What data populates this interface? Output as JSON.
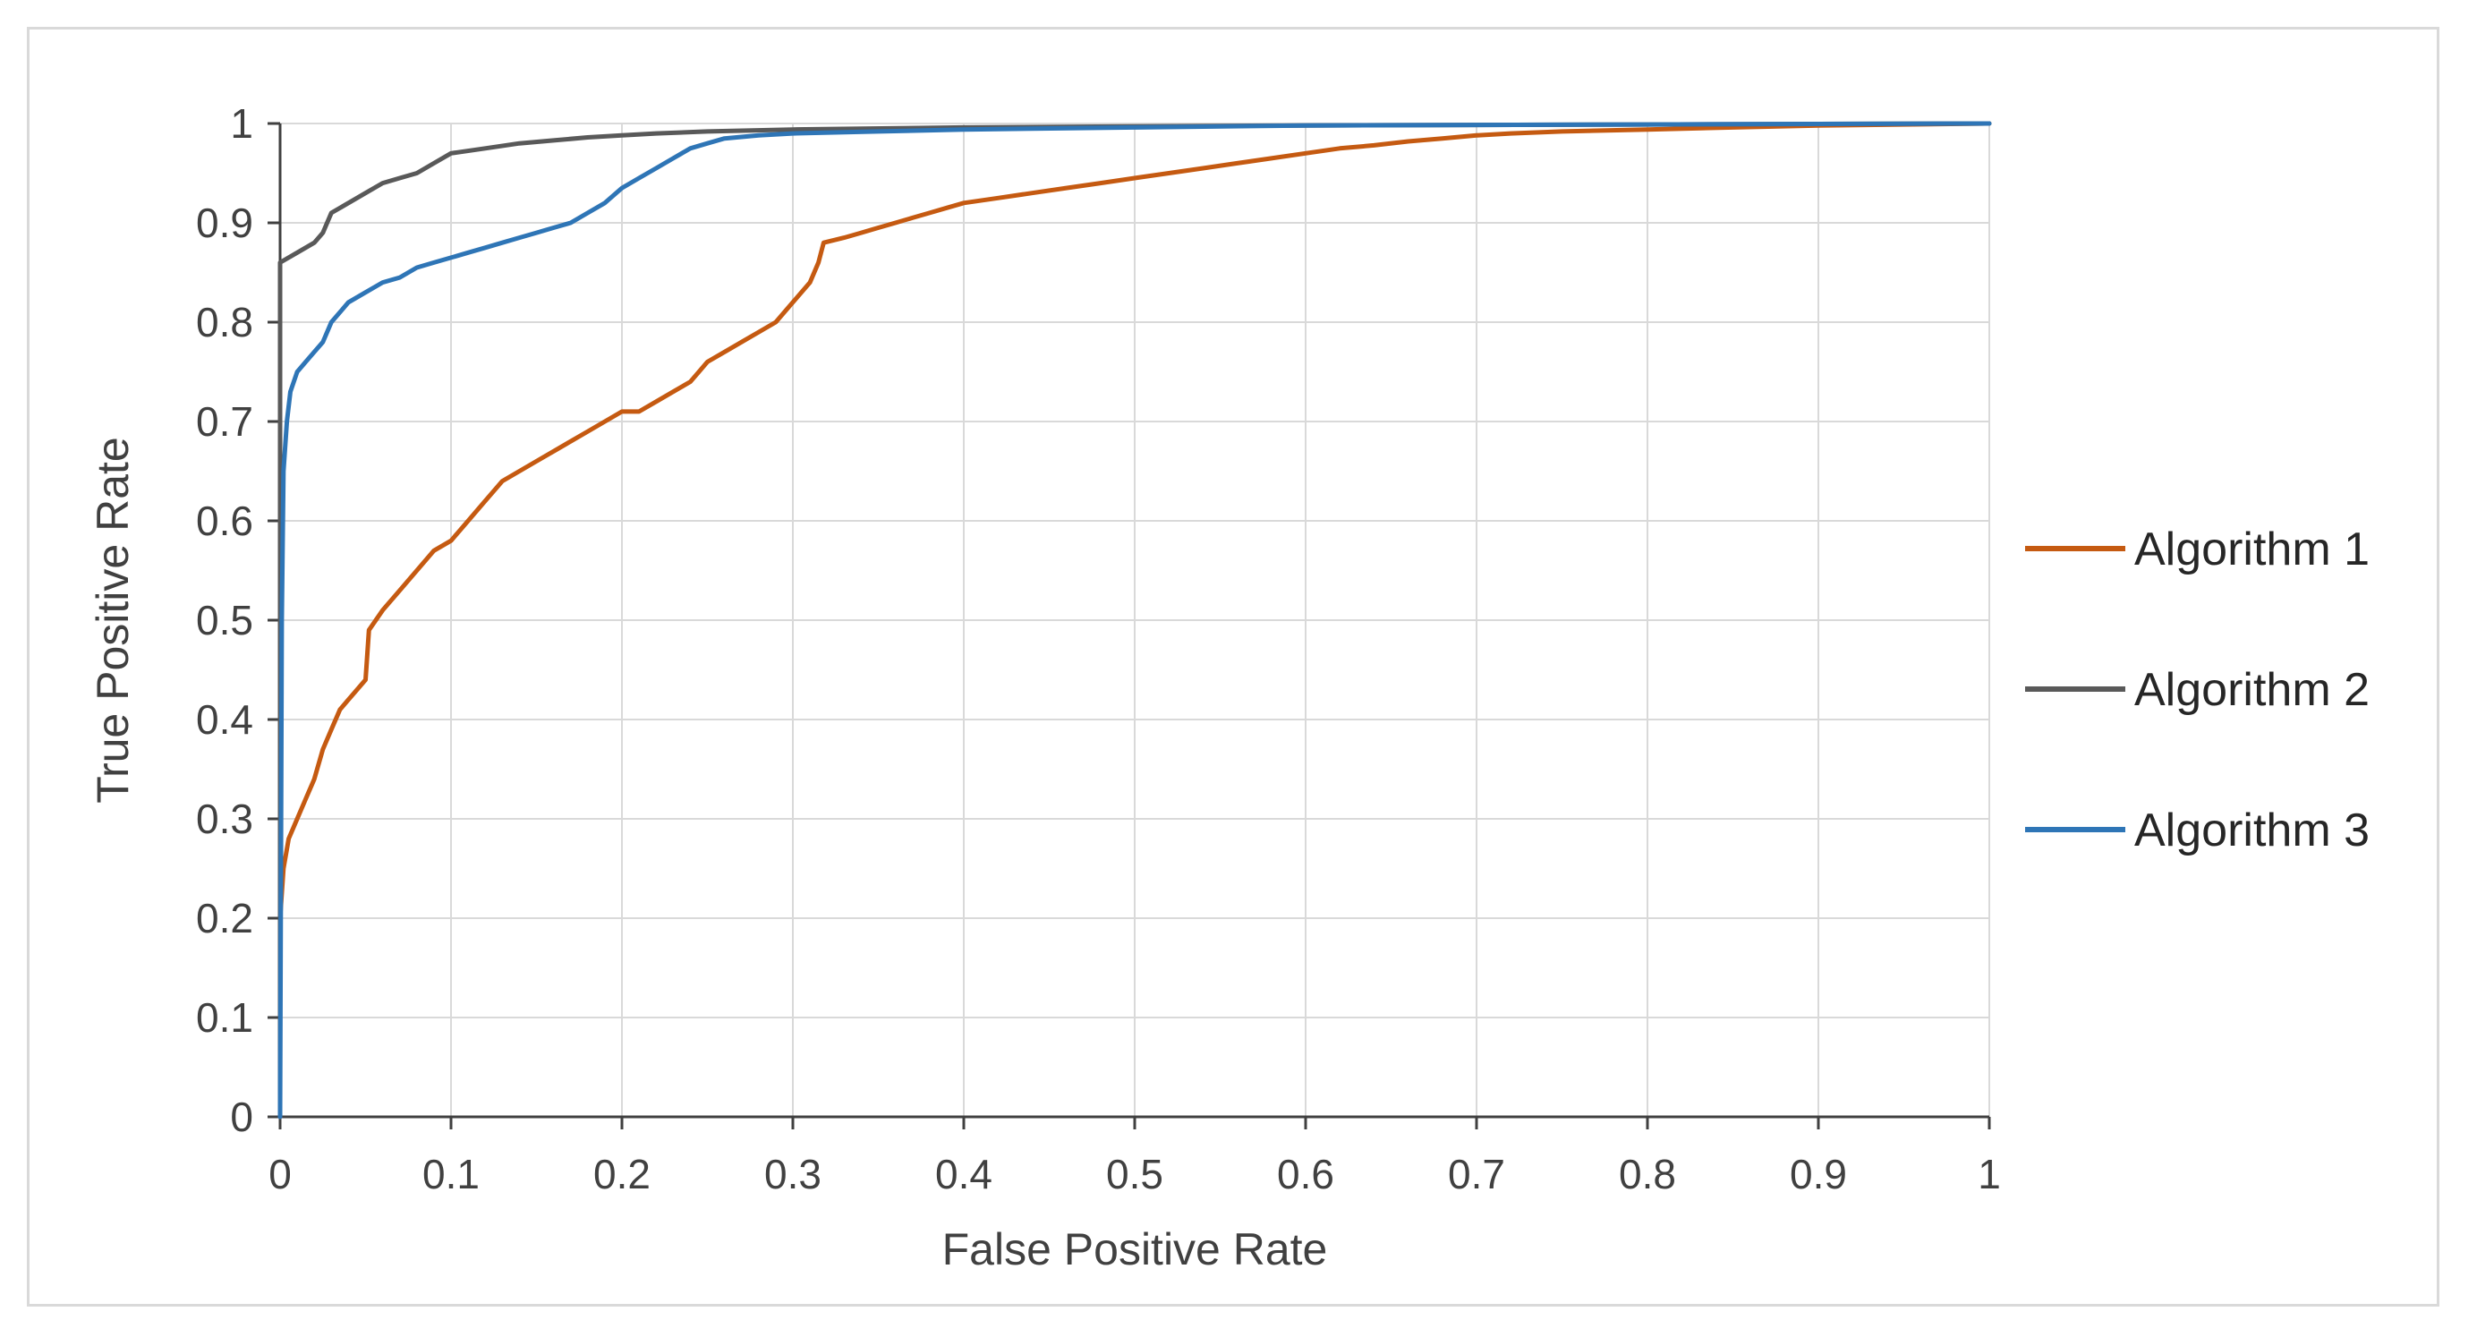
{
  "chart_data": {
    "type": "line",
    "xlabel": "False Positive Rate",
    "ylabel": "True Positive Rate",
    "xlim": [
      0,
      1
    ],
    "ylim": [
      0,
      1
    ],
    "x_ticks": [
      "0",
      "0.1",
      "0.2",
      "0.3",
      "0.4",
      "0.5",
      "0.6",
      "0.7",
      "0.8",
      "0.9",
      "1"
    ],
    "y_ticks": [
      "0",
      "0.1",
      "0.2",
      "0.3",
      "0.4",
      "0.5",
      "0.6",
      "0.7",
      "0.8",
      "0.9",
      "1"
    ],
    "grid": true,
    "legend_position": "right",
    "series": [
      {
        "name": "Algorithm 1",
        "color": "#c55a11",
        "points": [
          [
            0,
            0.2
          ],
          [
            0.002,
            0.25
          ],
          [
            0.005,
            0.28
          ],
          [
            0.01,
            0.3
          ],
          [
            0.015,
            0.32
          ],
          [
            0.02,
            0.34
          ],
          [
            0.025,
            0.37
          ],
          [
            0.03,
            0.39
          ],
          [
            0.035,
            0.41
          ],
          [
            0.04,
            0.42
          ],
          [
            0.045,
            0.43
          ],
          [
            0.05,
            0.44
          ],
          [
            0.052,
            0.49
          ],
          [
            0.06,
            0.51
          ],
          [
            0.07,
            0.53
          ],
          [
            0.08,
            0.55
          ],
          [
            0.09,
            0.57
          ],
          [
            0.1,
            0.58
          ],
          [
            0.11,
            0.6
          ],
          [
            0.12,
            0.62
          ],
          [
            0.13,
            0.64
          ],
          [
            0.14,
            0.65
          ],
          [
            0.15,
            0.66
          ],
          [
            0.16,
            0.67
          ],
          [
            0.17,
            0.68
          ],
          [
            0.18,
            0.69
          ],
          [
            0.19,
            0.7
          ],
          [
            0.2,
            0.71
          ],
          [
            0.21,
            0.71
          ],
          [
            0.22,
            0.72
          ],
          [
            0.23,
            0.73
          ],
          [
            0.24,
            0.74
          ],
          [
            0.245,
            0.75
          ],
          [
            0.25,
            0.76
          ],
          [
            0.26,
            0.77
          ],
          [
            0.27,
            0.78
          ],
          [
            0.28,
            0.79
          ],
          [
            0.29,
            0.8
          ],
          [
            0.3,
            0.82
          ],
          [
            0.31,
            0.84
          ],
          [
            0.315,
            0.86
          ],
          [
            0.318,
            0.88
          ],
          [
            0.33,
            0.885
          ],
          [
            0.34,
            0.89
          ],
          [
            0.35,
            0.895
          ],
          [
            0.36,
            0.9
          ],
          [
            0.37,
            0.905
          ],
          [
            0.38,
            0.91
          ],
          [
            0.39,
            0.915
          ],
          [
            0.4,
            0.92
          ],
          [
            0.42,
            0.925
          ],
          [
            0.44,
            0.93
          ],
          [
            0.46,
            0.935
          ],
          [
            0.48,
            0.94
          ],
          [
            0.5,
            0.945
          ],
          [
            0.52,
            0.95
          ],
          [
            0.54,
            0.955
          ],
          [
            0.56,
            0.96
          ],
          [
            0.58,
            0.965
          ],
          [
            0.6,
            0.97
          ],
          [
            0.62,
            0.975
          ],
          [
            0.64,
            0.978
          ],
          [
            0.66,
            0.982
          ],
          [
            0.68,
            0.985
          ],
          [
            0.7,
            0.988
          ],
          [
            0.72,
            0.99
          ],
          [
            0.75,
            0.992
          ],
          [
            0.8,
            0.994
          ],
          [
            0.85,
            0.996
          ],
          [
            0.9,
            0.998
          ],
          [
            0.95,
            0.999
          ],
          [
            1,
            1
          ]
        ]
      },
      {
        "name": "Algorithm 2",
        "color": "#595959",
        "points": [
          [
            0,
            0
          ],
          [
            0,
            0.86
          ],
          [
            0.01,
            0.87
          ],
          [
            0.02,
            0.88
          ],
          [
            0.025,
            0.89
          ],
          [
            0.03,
            0.91
          ],
          [
            0.04,
            0.92
          ],
          [
            0.05,
            0.93
          ],
          [
            0.06,
            0.94
          ],
          [
            0.07,
            0.945
          ],
          [
            0.08,
            0.95
          ],
          [
            0.09,
            0.96
          ],
          [
            0.1,
            0.97
          ],
          [
            0.12,
            0.975
          ],
          [
            0.14,
            0.98
          ],
          [
            0.16,
            0.983
          ],
          [
            0.18,
            0.986
          ],
          [
            0.2,
            0.988
          ],
          [
            0.22,
            0.99
          ],
          [
            0.25,
            0.992
          ],
          [
            0.3,
            0.994
          ],
          [
            0.4,
            0.996
          ],
          [
            0.5,
            0.997
          ],
          [
            0.6,
            0.998
          ],
          [
            0.8,
            0.999
          ],
          [
            1,
            1
          ]
        ]
      },
      {
        "name": "Algorithm 3",
        "color": "#2e75b6",
        "points": [
          [
            0,
            0
          ],
          [
            0.001,
            0.5
          ],
          [
            0.002,
            0.65
          ],
          [
            0.004,
            0.7
          ],
          [
            0.006,
            0.73
          ],
          [
            0.01,
            0.75
          ],
          [
            0.015,
            0.76
          ],
          [
            0.02,
            0.77
          ],
          [
            0.025,
            0.78
          ],
          [
            0.03,
            0.8
          ],
          [
            0.035,
            0.81
          ],
          [
            0.04,
            0.82
          ],
          [
            0.05,
            0.83
          ],
          [
            0.06,
            0.84
          ],
          [
            0.07,
            0.845
          ],
          [
            0.08,
            0.855
          ],
          [
            0.09,
            0.86
          ],
          [
            0.1,
            0.865
          ],
          [
            0.11,
            0.87
          ],
          [
            0.12,
            0.875
          ],
          [
            0.13,
            0.88
          ],
          [
            0.14,
            0.885
          ],
          [
            0.15,
            0.89
          ],
          [
            0.16,
            0.895
          ],
          [
            0.17,
            0.9
          ],
          [
            0.18,
            0.91
          ],
          [
            0.19,
            0.92
          ],
          [
            0.2,
            0.935
          ],
          [
            0.21,
            0.945
          ],
          [
            0.22,
            0.955
          ],
          [
            0.23,
            0.965
          ],
          [
            0.24,
            0.975
          ],
          [
            0.25,
            0.98
          ],
          [
            0.26,
            0.985
          ],
          [
            0.28,
            0.988
          ],
          [
            0.3,
            0.99
          ],
          [
            0.35,
            0.992
          ],
          [
            0.4,
            0.994
          ],
          [
            0.5,
            0.996
          ],
          [
            0.6,
            0.998
          ],
          [
            0.8,
            0.999
          ],
          [
            1,
            1
          ]
        ]
      }
    ]
  }
}
